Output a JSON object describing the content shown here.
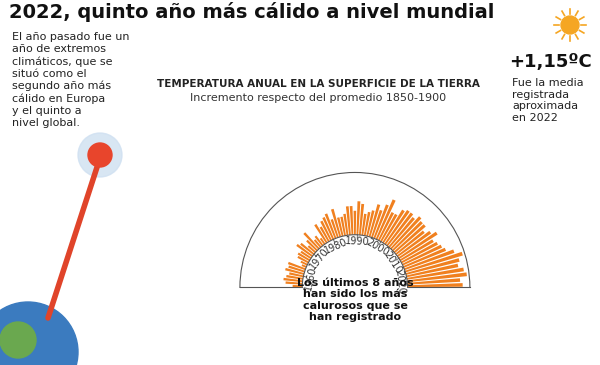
{
  "chart_data": {
    "type": "radial_bar",
    "title": "2022, quinto año más cálido a nivel mundial",
    "subtitle": "TEMPERATURA ANUAL EN LA SUPERFICIE DE LA TIERRA",
    "y_label": "Incremento respecto del promedio 1850-1900",
    "x": [
      1956,
      1957,
      1958,
      1959,
      1960,
      1961,
      1962,
      1963,
      1964,
      1965,
      1966,
      1967,
      1968,
      1969,
      1970,
      1971,
      1972,
      1973,
      1974,
      1975,
      1976,
      1977,
      1978,
      1979,
      1980,
      1981,
      1982,
      1983,
      1984,
      1985,
      1986,
      1987,
      1988,
      1989,
      1990,
      1991,
      1992,
      1993,
      1994,
      1995,
      1996,
      1997,
      1998,
      1999,
      2000,
      2001,
      2002,
      2003,
      2004,
      2005,
      2006,
      2007,
      2008,
      2009,
      2010,
      2011,
      2012,
      2013,
      2014,
      2015,
      2016,
      2017,
      2018,
      2019,
      2020,
      2021,
      2022
    ],
    "values": [
      0.2,
      0.35,
      0.4,
      0.35,
      0.3,
      0.4,
      0.35,
      0.38,
      0.1,
      0.15,
      0.25,
      0.28,
      0.25,
      0.4,
      0.35,
      0.2,
      0.3,
      0.45,
      0.2,
      0.25,
      0.15,
      0.45,
      0.35,
      0.45,
      0.5,
      0.55,
      0.4,
      0.6,
      0.4,
      0.4,
      0.45,
      0.6,
      0.6,
      0.5,
      0.7,
      0.65,
      0.45,
      0.5,
      0.55,
      0.7,
      0.6,
      0.75,
      0.9,
      0.65,
      0.65,
      0.8,
      0.85,
      0.85,
      0.8,
      0.9,
      0.85,
      0.85,
      0.75,
      0.85,
      0.95,
      0.8,
      0.85,
      0.9,
      0.95,
      1.1,
      1.25,
      1.15,
      1.1,
      1.2,
      1.25,
      1.1,
      1.15
    ],
    "color": "#f0801f",
    "xlim": [
      1955.5,
      2022.5
    ],
    "xticks": [
      1960,
      1970,
      1980,
      1990,
      2000,
      2010,
      2020
    ],
    "ylim": [
      0,
      1.3
    ],
    "grid": false,
    "tick_labels": "x",
    "annotations": {
      "note": "El año pasado fue un\naño de extremos\nclimáticos, que se\nsituó como el\nsegundo año más\ncálido en Europa\ny el quinto a\nnivel global.",
      "highlight": "+1,15ºC",
      "highlight_note": "Fue la media\nregistrada\naproximada\nen 2022",
      "center_note": "Los últimos 8 años\nhan sido los más\ncalurosos que se\nhan registrado"
    }
  }
}
